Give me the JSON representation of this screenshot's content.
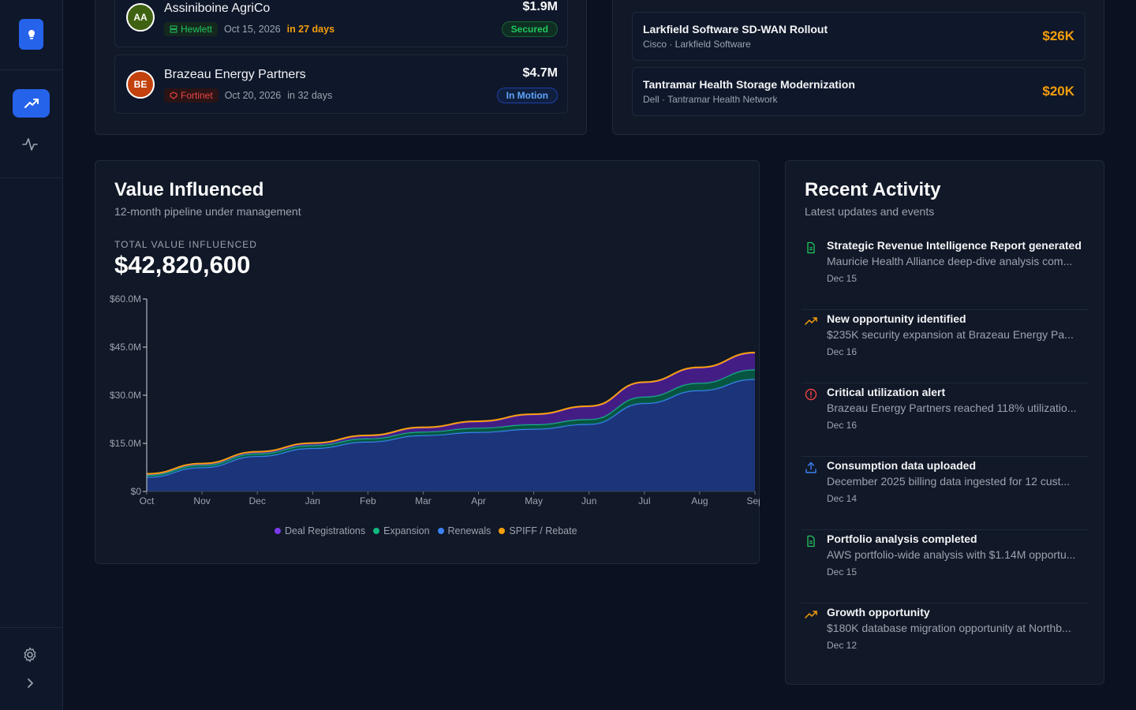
{
  "sidebar": {
    "logo_icon": "lightbulb-icon",
    "nav": [
      {
        "icon": "trending-up-icon",
        "active": true
      },
      {
        "icon": "activity-icon",
        "active": false
      }
    ],
    "bottom": [
      {
        "icon": "gear-icon"
      },
      {
        "icon": "chevron-right-icon"
      }
    ]
  },
  "accounts": [
    {
      "initials": "AA",
      "name": "Assiniboine AgriCo",
      "partner": "Hewlett",
      "partner_color": "#22c55e",
      "date": "Oct 15, 2026",
      "due": "in 27 days",
      "due_color": "#f59e0b",
      "amount": "$1.9M",
      "status": "Secured"
    },
    {
      "initials": "BE",
      "name": "Brazeau Energy Partners",
      "partner": "Fortinet",
      "partner_color": "#ef4444",
      "date": "Oct 20, 2026",
      "due": "in 32 days",
      "due_color": "#9ca3af",
      "amount": "$4.7M",
      "status": "In Motion"
    }
  ],
  "opportunities": [
    {
      "title": "Larkfield Software SD-WAN Rollout",
      "sub": "Cisco · Larkfield Software",
      "value": "$26K"
    },
    {
      "title": "Tantramar Health Storage Modernization",
      "sub": "Dell · Tantramar Health Network",
      "value": "$20K"
    }
  ],
  "value_card": {
    "title": "Value Influenced",
    "subtitle": "12-month pipeline under management",
    "kicker": "TOTAL VALUE INFLUENCED",
    "total": "$42,820,600"
  },
  "chart_data": {
    "type": "area",
    "stacked": true,
    "x": [
      "Oct",
      "Nov",
      "Dec",
      "Jan",
      "Feb",
      "Mar",
      "Apr",
      "May",
      "Jun",
      "Jul",
      "Aug",
      "Sep"
    ],
    "yticks": [
      "$0",
      "$15.0M",
      "$30.0M",
      "$45.0M",
      "$60.0M"
    ],
    "ylim": [
      0,
      60
    ],
    "series": [
      {
        "name": "Renewals",
        "color": "#3b82f6",
        "values": [
          4.5,
          7.5,
          11,
          13.5,
          15.5,
          17.5,
          18.5,
          19.5,
          21,
          27.5,
          31.5,
          35
        ]
      },
      {
        "name": "Expansion",
        "color": "#10b981",
        "values": [
          0.6,
          0.7,
          0.8,
          0.9,
          1.0,
          1.1,
          1.3,
          1.4,
          1.5,
          2.0,
          2.3,
          3.0
        ]
      },
      {
        "name": "Deal Registrations",
        "color": "#7c3aed",
        "values": [
          0.3,
          0.4,
          0.5,
          0.6,
          0.9,
          1.3,
          2.0,
          3.1,
          4.0,
          4.5,
          4.8,
          5.2
        ]
      },
      {
        "name": "SPIFF / Rebate",
        "color": "#f59e0b",
        "values": [
          0.1,
          0.1,
          0.1,
          0.1,
          0.1,
          0.1,
          0.1,
          0.1,
          0.1,
          0.1,
          0.1,
          0.1
        ]
      }
    ],
    "legend": [
      "Deal Registrations",
      "Expansion",
      "Renewals",
      "SPIFF / Rebate"
    ],
    "legend_colors": [
      "#7c3aed",
      "#10b981",
      "#3b82f6",
      "#f59e0b"
    ],
    "legend_position": "bottom"
  },
  "activity": {
    "title": "Recent Activity",
    "subtitle": "Latest updates and events",
    "items": [
      {
        "icon": "document-icon",
        "color": "#22c55e",
        "title": "Strategic Revenue Intelligence Report generated",
        "desc": "Mauricie Health Alliance deep-dive analysis com...",
        "date": "Dec 15"
      },
      {
        "icon": "trending-up-icon",
        "color": "#f59e0b",
        "title": "New opportunity identified",
        "desc": "$235K security expansion at Brazeau Energy Pa...",
        "date": "Dec 16"
      },
      {
        "icon": "alert-circle-icon",
        "color": "#ef4444",
        "title": "Critical utilization alert",
        "desc": "Brazeau Energy Partners reached 118% utilizatio...",
        "date": "Dec 16"
      },
      {
        "icon": "upload-icon",
        "color": "#3b82f6",
        "title": "Consumption data uploaded",
        "desc": "December 2025 billing data ingested for 12 cust...",
        "date": "Dec 14"
      },
      {
        "icon": "document-icon",
        "color": "#22c55e",
        "title": "Portfolio analysis completed",
        "desc": "AWS portfolio-wide analysis with $1.14M opportu...",
        "date": "Dec 15"
      },
      {
        "icon": "trending-up-icon",
        "color": "#f59e0b",
        "title": "Growth opportunity",
        "desc": "$180K database migration opportunity at Northb...",
        "date": "Dec 12"
      }
    ]
  }
}
